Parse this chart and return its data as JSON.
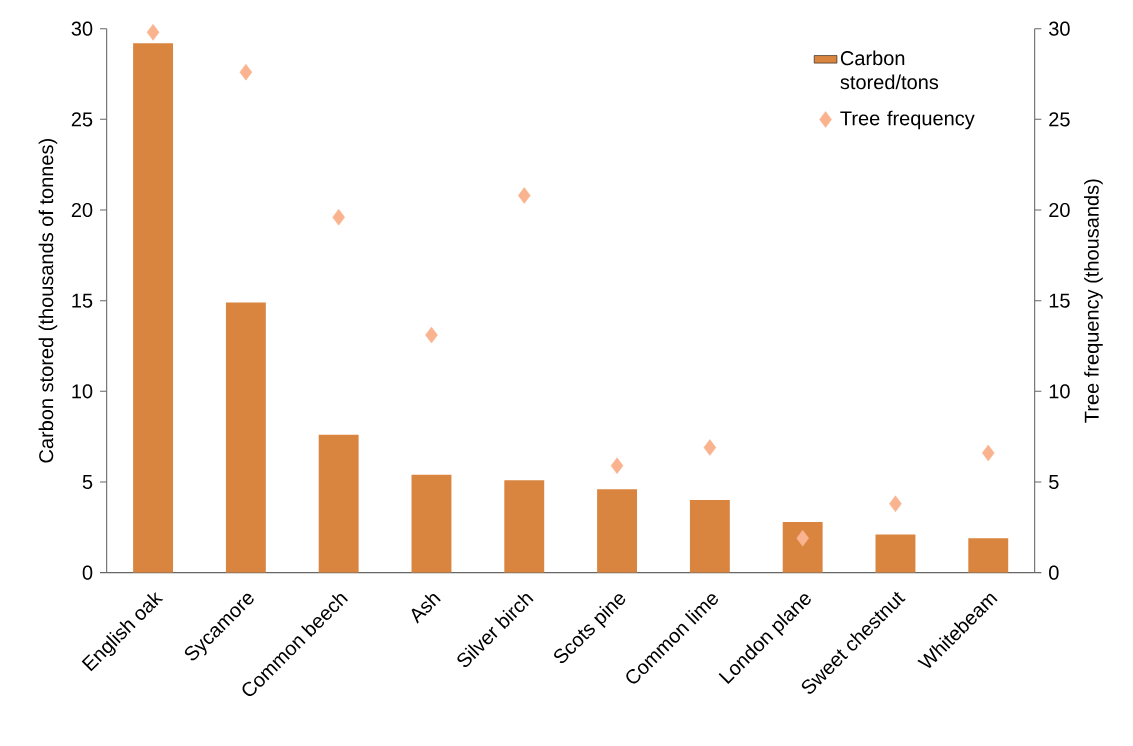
{
  "chart_data": {
    "type": "bar",
    "categories": [
      "English oak",
      "Sycamore",
      "Common beech",
      "Ash",
      "Silver birch",
      "Scots pine",
      "Common lime",
      "London plane",
      "Sweet chestnut",
      "Whitebeam"
    ],
    "ylabel": "Carbon stored (thousands of tonnes)",
    "y2label": "Tree frequency (thousands)",
    "ylim": [
      0,
      30
    ],
    "yticks": [
      0,
      5,
      10,
      15,
      20,
      25,
      30
    ],
    "y2lim": [
      0,
      30
    ],
    "y2ticks": [
      0,
      5,
      10,
      15,
      20,
      25,
      30
    ],
    "legend": "top right",
    "grid": false,
    "marker": "diamond",
    "series": [
      {
        "name": "Carbon stored/tons",
        "color": "#d9853f",
        "values": [
          29.2,
          14.9,
          7.6,
          5.4,
          5.1,
          4.6,
          4.0,
          2.8,
          2.1,
          1.9
        ]
      },
      {
        "name": "Tree frequency",
        "type": "scatter",
        "axis": "y2",
        "color": "#f9b48f",
        "values": [
          29.8,
          27.6,
          19.6,
          13.1,
          20.8,
          5.9,
          6.9,
          1.9,
          3.8,
          6.6
        ]
      }
    ]
  }
}
